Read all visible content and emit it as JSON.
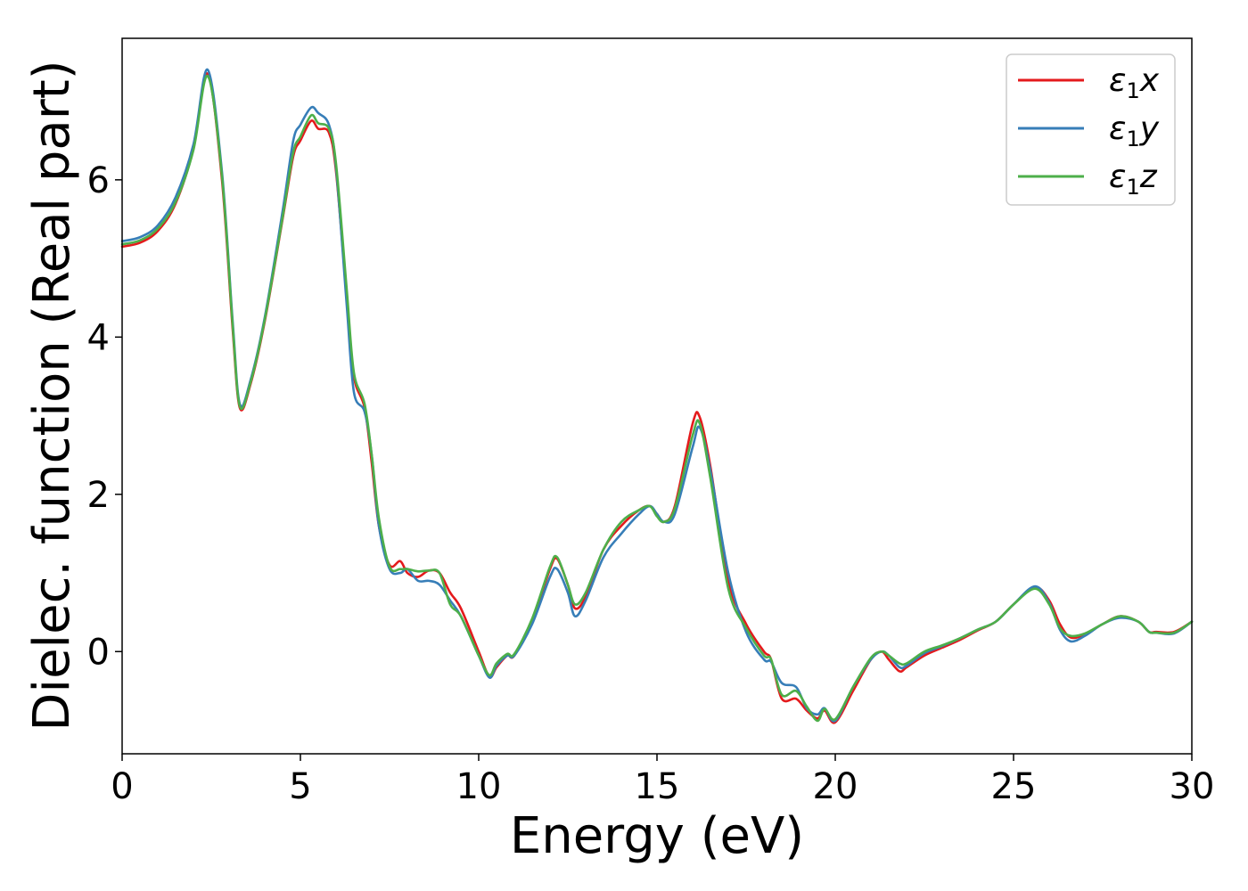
{
  "chart_data": {
    "type": "line",
    "xlabel": "Energy (eV)",
    "ylabel": "Dielec. function (Real part)",
    "xlim": [
      0,
      30
    ],
    "ylim": [
      -1.3,
      7.8
    ],
    "xticks": [
      0,
      5,
      10,
      15,
      20,
      25,
      30
    ],
    "xtick_labels": [
      "0",
      "5",
      "10",
      "15",
      "20",
      "25",
      "30"
    ],
    "yticks": [
      0,
      2,
      4,
      6
    ],
    "ytick_labels": [
      "0",
      "2",
      "4",
      "6"
    ],
    "grid": false,
    "legend_position": "top-right",
    "series": [
      {
        "name": "ε1x",
        "legend_base": "ε",
        "legend_sub": "1",
        "legend_suffix": "x",
        "color": "#e41a1c",
        "x": [
          0,
          0.5,
          1.0,
          1.5,
          2.0,
          2.4,
          2.8,
          3.1,
          3.3,
          3.6,
          4.0,
          4.5,
          4.8,
          5.0,
          5.3,
          5.5,
          5.8,
          6.0,
          6.3,
          6.5,
          6.8,
          7.0,
          7.2,
          7.5,
          7.8,
          8.0,
          8.3,
          8.6,
          8.9,
          9.2,
          9.5,
          10.0,
          10.3,
          10.5,
          10.8,
          11.0,
          11.5,
          12.0,
          12.2,
          12.5,
          12.7,
          13.0,
          13.5,
          14.0,
          14.5,
          14.8,
          15.0,
          15.2,
          15.5,
          16.0,
          16.2,
          16.5,
          17.0,
          17.5,
          18.0,
          18.2,
          18.5,
          18.9,
          19.2,
          19.5,
          19.7,
          20.0,
          20.5,
          21.0,
          21.3,
          21.5,
          21.8,
          22.0,
          22.5,
          23.0,
          23.5,
          24.0,
          24.5,
          25.0,
          25.6,
          26.0,
          26.3,
          26.6,
          27.0,
          27.5,
          28.0,
          28.5,
          28.8,
          29.0,
          29.5,
          30.0
        ],
        "y": [
          5.15,
          5.2,
          5.35,
          5.7,
          6.4,
          7.35,
          6.0,
          4.1,
          3.1,
          3.4,
          4.2,
          5.5,
          6.3,
          6.5,
          6.75,
          6.65,
          6.6,
          6.1,
          4.5,
          3.5,
          3.1,
          2.4,
          1.6,
          1.1,
          1.15,
          1.0,
          0.95,
          1.03,
          1.0,
          0.75,
          0.55,
          0.0,
          -0.32,
          -0.2,
          -0.05,
          -0.05,
          0.4,
          1.05,
          1.18,
          0.85,
          0.55,
          0.7,
          1.3,
          1.6,
          1.8,
          1.85,
          1.75,
          1.65,
          1.85,
          2.9,
          2.98,
          2.35,
          0.9,
          0.35,
          0.0,
          -0.1,
          -0.6,
          -0.6,
          -0.75,
          -0.85,
          -0.75,
          -0.9,
          -0.5,
          -0.1,
          0.0,
          -0.1,
          -0.25,
          -0.2,
          -0.05,
          0.05,
          0.15,
          0.27,
          0.38,
          0.6,
          0.82,
          0.65,
          0.35,
          0.18,
          0.22,
          0.35,
          0.45,
          0.38,
          0.25,
          0.25,
          0.25,
          0.38
        ]
      },
      {
        "name": "ε1y",
        "legend_base": "ε",
        "legend_sub": "1",
        "legend_suffix": "y",
        "color": "#377eb8",
        "x": [
          0,
          0.5,
          1.0,
          1.5,
          2.0,
          2.4,
          2.8,
          3.1,
          3.3,
          3.6,
          4.0,
          4.5,
          4.8,
          5.0,
          5.3,
          5.5,
          5.8,
          6.0,
          6.3,
          6.5,
          6.8,
          7.0,
          7.2,
          7.5,
          7.8,
          8.0,
          8.3,
          8.6,
          8.9,
          9.2,
          9.5,
          10.0,
          10.3,
          10.5,
          10.8,
          11.0,
          11.5,
          12.0,
          12.2,
          12.5,
          12.7,
          13.0,
          13.5,
          14.0,
          14.5,
          14.8,
          15.0,
          15.2,
          15.5,
          16.0,
          16.2,
          16.5,
          17.0,
          17.5,
          18.0,
          18.2,
          18.5,
          18.9,
          19.2,
          19.5,
          19.7,
          20.0,
          20.5,
          21.0,
          21.3,
          21.5,
          21.8,
          22.0,
          22.5,
          23.0,
          23.5,
          24.0,
          24.5,
          25.0,
          25.6,
          26.0,
          26.3,
          26.6,
          27.0,
          27.5,
          28.0,
          28.5,
          28.8,
          29.0,
          29.5,
          30.0
        ],
        "y": [
          5.22,
          5.27,
          5.42,
          5.78,
          6.45,
          7.4,
          6.1,
          4.2,
          3.15,
          3.45,
          4.25,
          5.6,
          6.5,
          6.7,
          6.92,
          6.85,
          6.7,
          6.15,
          4.4,
          3.3,
          3.05,
          2.5,
          1.6,
          1.05,
          1.0,
          1.05,
          0.9,
          0.9,
          0.85,
          0.65,
          0.45,
          -0.05,
          -0.33,
          -0.18,
          -0.05,
          -0.05,
          0.35,
          0.95,
          1.05,
          0.75,
          0.45,
          0.65,
          1.2,
          1.5,
          1.75,
          1.85,
          1.75,
          1.65,
          1.75,
          2.6,
          2.85,
          2.3,
          1.0,
          0.25,
          -0.1,
          -0.13,
          -0.4,
          -0.45,
          -0.72,
          -0.8,
          -0.72,
          -0.88,
          -0.45,
          -0.1,
          0.0,
          -0.05,
          -0.2,
          -0.18,
          -0.02,
          0.07,
          0.17,
          0.28,
          0.38,
          0.6,
          0.83,
          0.62,
          0.28,
          0.13,
          0.2,
          0.35,
          0.43,
          0.38,
          0.25,
          0.24,
          0.23,
          0.38
        ]
      },
      {
        "name": "ε1z",
        "legend_base": "ε",
        "legend_sub": "1",
        "legend_suffix": "z",
        "color": "#4daf4a",
        "x": [
          0,
          0.5,
          1.0,
          1.5,
          2.0,
          2.4,
          2.8,
          3.1,
          3.3,
          3.6,
          4.0,
          4.5,
          4.8,
          5.0,
          5.3,
          5.5,
          5.8,
          6.0,
          6.3,
          6.5,
          6.8,
          7.0,
          7.2,
          7.5,
          7.8,
          8.0,
          8.3,
          8.6,
          8.9,
          9.2,
          9.5,
          10.0,
          10.3,
          10.5,
          10.8,
          11.0,
          11.5,
          12.0,
          12.2,
          12.5,
          12.7,
          13.0,
          13.5,
          14.0,
          14.5,
          14.8,
          15.0,
          15.2,
          15.5,
          16.0,
          16.2,
          16.5,
          17.0,
          17.5,
          18.0,
          18.2,
          18.5,
          18.9,
          19.2,
          19.5,
          19.7,
          20.0,
          20.5,
          21.0,
          21.3,
          21.5,
          21.8,
          22.0,
          22.5,
          23.0,
          23.5,
          24.0,
          24.5,
          25.0,
          25.6,
          26.0,
          26.3,
          26.6,
          27.0,
          27.5,
          28.0,
          28.5,
          28.8,
          29.0,
          29.5,
          30.0
        ],
        "y": [
          5.18,
          5.23,
          5.38,
          5.72,
          6.38,
          7.32,
          6.05,
          4.15,
          3.12,
          3.42,
          4.22,
          5.52,
          6.35,
          6.55,
          6.82,
          6.72,
          6.65,
          6.2,
          4.6,
          3.55,
          3.15,
          2.5,
          1.7,
          1.08,
          1.05,
          1.05,
          1.02,
          1.03,
          1.0,
          0.6,
          0.45,
          -0.05,
          -0.3,
          -0.15,
          -0.03,
          -0.03,
          0.42,
          1.08,
          1.2,
          0.85,
          0.6,
          0.75,
          1.3,
          1.65,
          1.8,
          1.85,
          1.72,
          1.65,
          1.82,
          2.75,
          2.9,
          2.2,
          0.8,
          0.3,
          -0.05,
          -0.1,
          -0.55,
          -0.5,
          -0.7,
          -0.88,
          -0.73,
          -0.86,
          -0.45,
          -0.08,
          0.0,
          -0.05,
          -0.15,
          -0.15,
          0.0,
          0.08,
          0.17,
          0.28,
          0.38,
          0.6,
          0.8,
          0.6,
          0.3,
          0.2,
          0.23,
          0.35,
          0.45,
          0.38,
          0.25,
          0.24,
          0.24,
          0.38
        ]
      }
    ]
  }
}
